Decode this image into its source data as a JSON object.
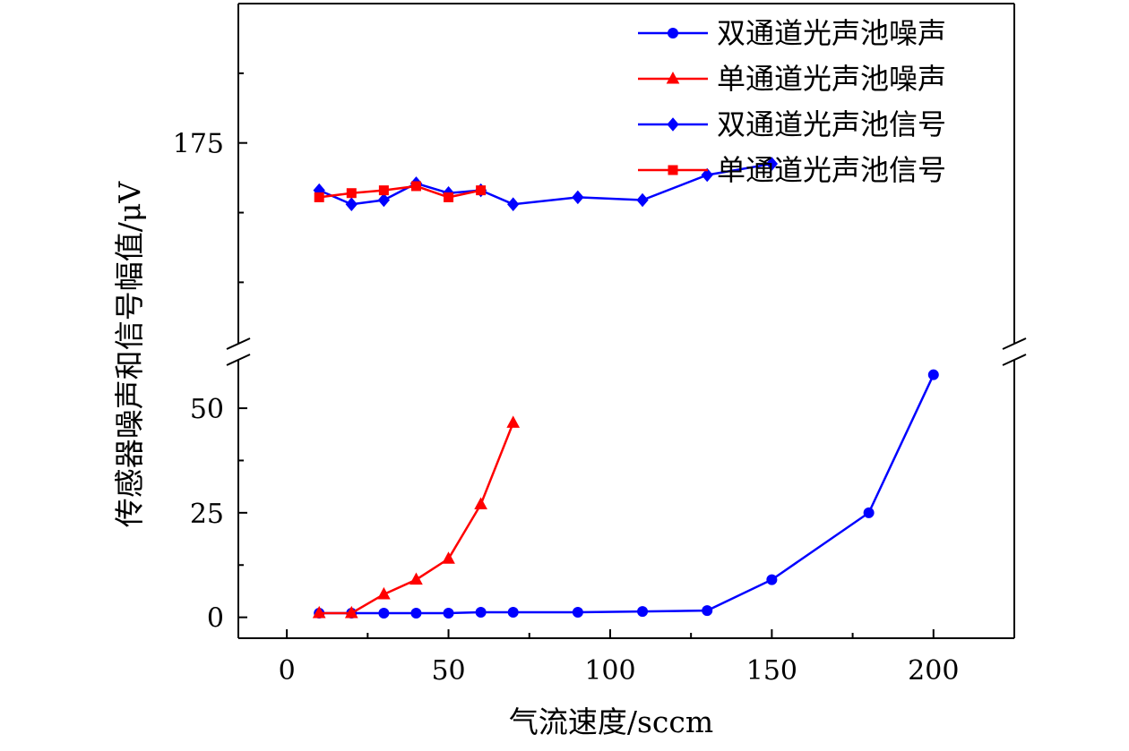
{
  "chart_data": {
    "type": "line",
    "xlabel": "气流速度/sccm",
    "ylabel": "传感器噪声和信号幅值/μV",
    "xlim": [
      -15,
      225
    ],
    "x_ticks": [
      0,
      50,
      100,
      150,
      200
    ],
    "x_tick_labels": [
      "0",
      "50",
      "100",
      "150",
      "200"
    ],
    "y_axis_break": true,
    "y_lower": {
      "ylim": [
        -5,
        62
      ],
      "ticks": [
        0,
        25,
        50
      ],
      "tick_labels": [
        "0",
        "25",
        "50"
      ]
    },
    "y_upper": {
      "ylim": [
        102,
        225
      ],
      "ticks": [
        175
      ],
      "tick_labels": [
        "175"
      ]
    },
    "legend_position": "top-right",
    "series": [
      {
        "name": "双通道光声池噪声",
        "color": "#0000ff",
        "marker": "circle",
        "x": [
          10,
          20,
          30,
          40,
          50,
          60,
          70,
          90,
          110,
          130,
          150,
          180,
          200
        ],
        "y": [
          1.0,
          1.0,
          1.0,
          1.0,
          1.0,
          1.2,
          1.2,
          1.2,
          1.4,
          1.6,
          9.0,
          25.0,
          58.0
        ]
      },
      {
        "name": "单通道光声池噪声",
        "color": "#ff0000",
        "marker": "triangle",
        "x": [
          10,
          20,
          30,
          40,
          50,
          60,
          70
        ],
        "y": [
          1.0,
          1.0,
          5.5,
          9.0,
          14.0,
          27.0,
          46.5
        ]
      },
      {
        "name": "双通道光声池信号",
        "color": "#0000ff",
        "marker": "diamond",
        "x": [
          10,
          20,
          30,
          40,
          50,
          60,
          70,
          90,
          110,
          130,
          150
        ],
        "y": [
          158.0,
          153.0,
          154.5,
          160.5,
          157.0,
          158.0,
          153.0,
          155.5,
          154.5,
          163.5,
          167.5
        ]
      },
      {
        "name": "单通道光声池信号",
        "color": "#ff0000",
        "marker": "square",
        "x": [
          10,
          20,
          30,
          40,
          50,
          60
        ],
        "y": [
          155.5,
          157.0,
          158.0,
          159.5,
          155.5,
          158.0
        ]
      }
    ]
  }
}
